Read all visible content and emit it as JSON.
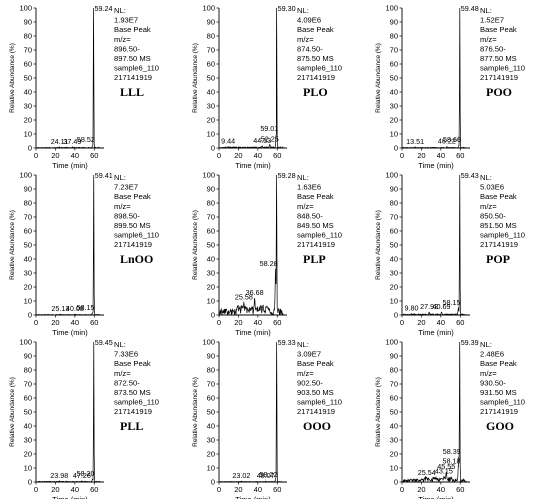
{
  "chart_data": [
    {
      "type": "line",
      "name": "LLL",
      "xlabel": "Time (min)",
      "ylabel": "Relative Abundance (%)",
      "xlim": [
        0,
        70
      ],
      "ylim": [
        0,
        100
      ],
      "xticks": [
        0,
        20,
        40,
        60
      ],
      "yticks": [
        0,
        10,
        20,
        30,
        40,
        50,
        60,
        70,
        80,
        90,
        100
      ],
      "noise": 0.5,
      "info": [
        "NL:",
        "1.93E7",
        "Base Peak",
        "m/z=",
        "896.50-",
        "897.50 MS",
        "sample6_110",
        "217141919"
      ],
      "peaks": [
        {
          "x": 59.24,
          "y": 100,
          "label": "59.24"
        },
        {
          "x": 24.11,
          "y": 0.8,
          "label": "24.11"
        },
        {
          "x": 37.49,
          "y": 0.8,
          "label": "37.49"
        },
        {
          "x": 58.52,
          "y": 2.0,
          "label": "58.52"
        }
      ]
    },
    {
      "type": "line",
      "name": "PLO",
      "xlabel": "Time (min)",
      "ylabel": "Relative Abundance (%)",
      "xlim": [
        0,
        70
      ],
      "ylim": [
        0,
        100
      ],
      "xticks": [
        0,
        20,
        40,
        60
      ],
      "yticks": [
        0,
        10,
        20,
        30,
        40,
        50,
        60,
        70,
        80,
        90,
        100
      ],
      "noise": 0.8,
      "info": [
        "NL:",
        "4.09E6",
        "Base Peak",
        "m/z=",
        "874.50-",
        "875.50 MS",
        "sample6_110",
        "217141919"
      ],
      "peaks": [
        {
          "x": 59.3,
          "y": 100,
          "label": "59.30"
        },
        {
          "x": 9.44,
          "y": 1.0,
          "label": "9.44"
        },
        {
          "x": 44.53,
          "y": 1.5,
          "label": "44.53"
        },
        {
          "x": 52.25,
          "y": 2.5,
          "label": "52.25"
        },
        {
          "x": 59.01,
          "y": 10,
          "label": "59.01"
        }
      ]
    },
    {
      "type": "line",
      "name": "POO",
      "xlabel": "Time (min)",
      "ylabel": "Relative Abundance (%)",
      "xlim": [
        0,
        70
      ],
      "ylim": [
        0,
        100
      ],
      "xticks": [
        0,
        20,
        40,
        60
      ],
      "yticks": [
        0,
        10,
        20,
        30,
        40,
        50,
        60,
        70,
        80,
        90,
        100
      ],
      "noise": 0.5,
      "info": [
        "NL:",
        "1.52E7",
        "Base Peak",
        "m/z=",
        "876.50-",
        "877.50 MS",
        "sample6_110",
        "217141919"
      ],
      "peaks": [
        {
          "x": 59.48,
          "y": 100,
          "label": "59.48"
        },
        {
          "x": 13.51,
          "y": 0.8,
          "label": "13.51"
        },
        {
          "x": 46.22,
          "y": 1.0,
          "label": "46.22"
        },
        {
          "x": 58.66,
          "y": 2.0,
          "label": "58.66"
        }
      ]
    },
    {
      "type": "line",
      "name": "LnOO",
      "xlabel": "Time (min)",
      "ylabel": "Relative Abundance (%)",
      "xlim": [
        0,
        70
      ],
      "ylim": [
        0,
        100
      ],
      "xticks": [
        0,
        20,
        40,
        60
      ],
      "yticks": [
        0,
        10,
        20,
        30,
        40,
        50,
        60,
        70,
        80,
        90,
        100
      ],
      "noise": 0.4,
      "info": [
        "NL:",
        "7.23E7",
        "Base Peak",
        "m/z=",
        "898.50-",
        "899.50 MS",
        "sample6_110",
        "217141919"
      ],
      "peaks": [
        {
          "x": 59.41,
          "y": 100,
          "label": "59.41"
        },
        {
          "x": 25.13,
          "y": 0.6,
          "label": "25.13"
        },
        {
          "x": 40.08,
          "y": 0.6,
          "label": "40.08"
        },
        {
          "x": 58.15,
          "y": 1.5,
          "label": "58.15"
        }
      ]
    },
    {
      "type": "line",
      "name": "PLP",
      "xlabel": "Time (min)",
      "ylabel": "Relative Abundance (%)",
      "xlim": [
        0,
        70
      ],
      "ylim": [
        0,
        100
      ],
      "xticks": [
        0,
        20,
        40,
        60
      ],
      "yticks": [
        0,
        10,
        20,
        30,
        40,
        50,
        60,
        70,
        80,
        90,
        100
      ],
      "noise": 4.5,
      "info": [
        "NL:",
        "1.63E6",
        "Base Peak",
        "m/z=",
        "848.50-",
        "849.50 MS",
        "sample6_110",
        "217141919"
      ],
      "peaks": [
        {
          "x": 59.28,
          "y": 100,
          "label": "59.28"
        },
        {
          "x": 25.58,
          "y": 9,
          "label": "25.58"
        },
        {
          "x": 36.68,
          "y": 12,
          "label": "36.68"
        },
        {
          "x": 58.28,
          "y": 33,
          "label": "58.28"
        }
      ]
    },
    {
      "type": "line",
      "name": "POP",
      "xlabel": "Time (min)",
      "ylabel": "Relative Abundance (%)",
      "xlim": [
        0,
        70
      ],
      "ylim": [
        0,
        100
      ],
      "xticks": [
        0,
        20,
        40,
        60
      ],
      "yticks": [
        0,
        10,
        20,
        30,
        40,
        50,
        60,
        70,
        80,
        90,
        100
      ],
      "noise": 0.8,
      "info": [
        "NL:",
        "5.03E6",
        "Base Peak",
        "m/z=",
        "850.50-",
        "851.50 MS",
        "sample6_110",
        "217141919"
      ],
      "peaks": [
        {
          "x": 59.43,
          "y": 100,
          "label": "59.43"
        },
        {
          "x": 9.8,
          "y": 1.0,
          "label": "9.80"
        },
        {
          "x": 27.92,
          "y": 2.0,
          "label": "27.92"
        },
        {
          "x": 40.69,
          "y": 2.0,
          "label": "40.69"
        },
        {
          "x": 58.15,
          "y": 5,
          "label": "58.15"
        }
      ]
    },
    {
      "type": "line",
      "name": "PLL",
      "xlabel": "Time (min)",
      "ylabel": "Relative Abundance (%)",
      "xlim": [
        0,
        70
      ],
      "ylim": [
        0,
        100
      ],
      "xticks": [
        0,
        20,
        40,
        60
      ],
      "yticks": [
        0,
        10,
        20,
        30,
        40,
        50,
        60,
        70,
        80,
        90,
        100
      ],
      "noise": 0.5,
      "info": [
        "NL:",
        "7.33E6",
        "Base Peak",
        "m/z=",
        "872.50-",
        "873.50 MS",
        "sample6_110",
        "217141919"
      ],
      "peaks": [
        {
          "x": 59.45,
          "y": 100,
          "label": "59.45"
        },
        {
          "x": 23.98,
          "y": 0.8,
          "label": "23.98"
        },
        {
          "x": 47.26,
          "y": 0.8,
          "label": "47.26"
        },
        {
          "x": 58.2,
          "y": 2.0,
          "label": "58.20"
        }
      ]
    },
    {
      "type": "line",
      "name": "OOO",
      "xlabel": "Time (min)",
      "ylabel": "Relative Abundance (%)",
      "xlim": [
        0,
        70
      ],
      "ylim": [
        0,
        100
      ],
      "xticks": [
        0,
        20,
        40,
        60
      ],
      "yticks": [
        0,
        10,
        20,
        30,
        40,
        50,
        60,
        70,
        80,
        90,
        100
      ],
      "noise": 0.4,
      "info": [
        "NL:",
        "3.09E7",
        "Base Peak",
        "m/z=",
        "902.50-",
        "903.50 MS",
        "sample6_110",
        "217141919"
      ],
      "peaks": [
        {
          "x": 59.33,
          "y": 100,
          "label": "59.33"
        },
        {
          "x": 23.02,
          "y": 0.6,
          "label": "23.02"
        },
        {
          "x": 48.07,
          "y": 0.6,
          "label": "48.07"
        },
        {
          "x": 58.22,
          "y": 1.5,
          "label": "58.22"
        }
      ]
    },
    {
      "type": "line",
      "name": "GOO",
      "xlabel": "Time (min)",
      "ylabel": "Relative Abundance (%)",
      "xlim": [
        0,
        70
      ],
      "ylim": [
        0,
        100
      ],
      "xticks": [
        0,
        20,
        40,
        60
      ],
      "yticks": [
        0,
        10,
        20,
        30,
        40,
        50,
        60,
        70,
        80,
        90,
        100
      ],
      "noise": 2.2,
      "info": [
        "NL:",
        "2.48E6",
        "Base Peak",
        "m/z=",
        "930.50-",
        "931.50 MS",
        "sample6_110",
        "217141919"
      ],
      "peaks": [
        {
          "x": 59.39,
          "y": 100,
          "label": "59.39"
        },
        {
          "x": 25.54,
          "y": 3,
          "label": "25.54"
        },
        {
          "x": 43.15,
          "y": 4,
          "label": "43.15"
        },
        {
          "x": 45.55,
          "y": 7,
          "label": "45.55"
        },
        {
          "x": 58.18,
          "y": 11,
          "label": "58.18"
        },
        {
          "x": 58.39,
          "y": 18,
          "label": "58.39"
        }
      ]
    }
  ]
}
